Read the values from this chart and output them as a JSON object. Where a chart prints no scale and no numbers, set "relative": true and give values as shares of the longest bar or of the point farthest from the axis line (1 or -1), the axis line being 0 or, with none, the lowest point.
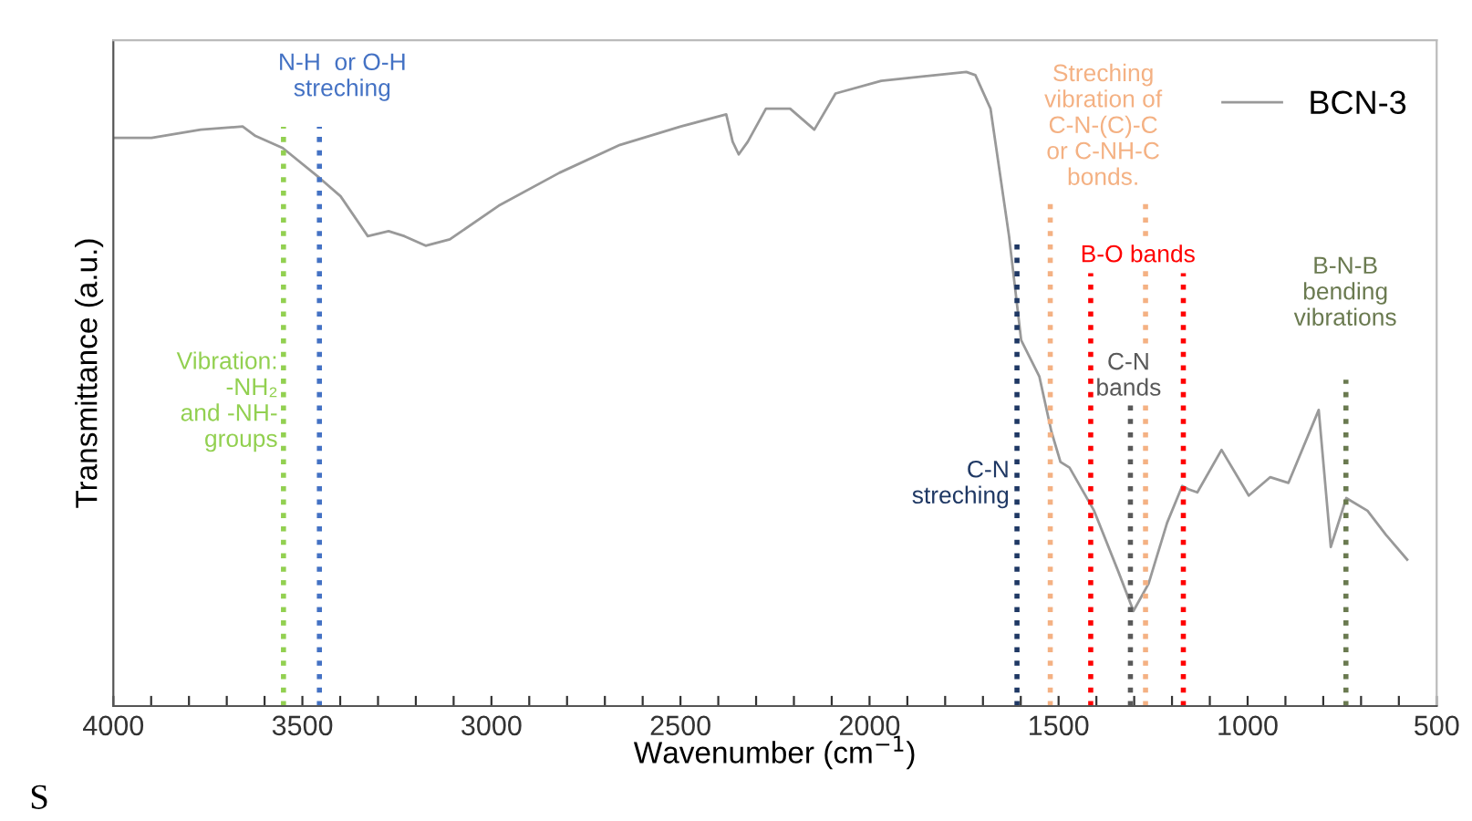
{
  "chart_data": {
    "type": "line",
    "relative": true,
    "xlabel": "Wavenumber (cm$^{−1}$)",
    "ylabel": "Transmittance (a.u.)",
    "xlim": [
      4000,
      500
    ],
    "xticks": [
      4000,
      {
        "value": 3900,
        "label": null
      },
      {
        "value": 3800,
        "label": null
      },
      {
        "value": 3700,
        "label": null
      },
      {
        "value": 3600,
        "label": null
      },
      3500,
      {
        "value": 3400,
        "label": null
      },
      {
        "value": 3300,
        "label": null
      },
      {
        "value": 3200,
        "label": null
      },
      {
        "value": 3100,
        "label": null
      },
      3000,
      {
        "value": 2900,
        "label": null
      },
      {
        "value": 2800,
        "label": null
      },
      {
        "value": 2700,
        "label": null
      },
      {
        "value": 2600,
        "label": null
      },
      2500,
      {
        "value": 2400,
        "label": null
      },
      {
        "value": 2300,
        "label": null
      },
      {
        "value": 2200,
        "label": null
      },
      {
        "value": 2100,
        "label": null
      },
      2000,
      {
        "value": 1900,
        "label": null
      },
      {
        "value": 1800,
        "label": null
      },
      {
        "value": 1700,
        "label": null
      },
      {
        "value": 1600,
        "label": null
      },
      1500,
      {
        "value": 1400,
        "label": null
      },
      {
        "value": 1300,
        "label": null
      },
      {
        "value": 1200,
        "label": null
      },
      {
        "value": 1100,
        "label": null
      },
      1000,
      {
        "value": 900,
        "label": null
      },
      {
        "value": 800,
        "label": null
      },
      {
        "value": 700,
        "label": null
      },
      {
        "value": 600,
        "label": null
      },
      500
    ],
    "tick_labels": "x",
    "grid": false,
    "legend": "top right",
    "marker": "none",
    "line_style": "solid",
    "series": [
      {
        "name": "BCN-3",
        "color": "#999999",
        "x": [
          4000,
          3899,
          3769,
          3658,
          3624,
          3552,
          3455,
          3399,
          3327,
          3272,
          3230,
          3174,
          3110,
          2981,
          2820,
          2660,
          2499,
          2379,
          2362,
          2346,
          2322,
          2274,
          2210,
          2146,
          2090,
          1969,
          1744,
          1720,
          1680,
          1631,
          1599,
          1551,
          1519,
          1495,
          1471,
          1406,
          1342,
          1302,
          1262,
          1213,
          1173,
          1157,
          1133,
          1069,
          997,
          940,
          892,
          812,
          780,
          739,
          683,
          634,
          578
        ],
        "values": [
          0.896,
          0.896,
          0.909,
          0.914,
          0.899,
          0.88,
          0.833,
          0.804,
          0.741,
          0.749,
          0.741,
          0.726,
          0.736,
          0.789,
          0.841,
          0.885,
          0.914,
          0.933,
          0.89,
          0.87,
          0.89,
          0.942,
          0.942,
          0.909,
          0.966,
          0.986,
          1.0,
          0.995,
          0.942,
          0.741,
          0.577,
          0.52,
          0.433,
          0.385,
          0.376,
          0.308,
          0.212,
          0.15,
          0.193,
          0.289,
          0.347,
          0.342,
          0.337,
          0.404,
          0.332,
          0.361,
          0.352,
          0.467,
          0.251,
          0.328,
          0.308,
          0.27,
          0.231
        ]
      }
    ],
    "ref_lines": [
      {
        "axis": "x",
        "value": 3550,
        "color": "#92d050",
        "line_style": "dotted"
      },
      {
        "axis": "x",
        "value": 3455,
        "color": "#4472c4",
        "line_style": "dotted"
      },
      {
        "axis": "x",
        "value": 1610,
        "color": "#1f3864",
        "line_style": "dotted"
      },
      {
        "axis": "x",
        "value": 1522,
        "color": "#f4b183",
        "line_style": "dotted"
      },
      {
        "axis": "x",
        "value": 1415,
        "color": "#ff0000",
        "line_style": "dotted"
      },
      {
        "axis": "x",
        "value": 1310,
        "color": "#595959",
        "line_style": "dotted"
      },
      {
        "axis": "x",
        "value": 1270,
        "color": "#f4b183",
        "line_style": "dotted"
      },
      {
        "axis": "x",
        "value": 1170,
        "color": "#ff0000",
        "line_style": "dotted"
      },
      {
        "axis": "x",
        "value": 740,
        "color": "#6a7a50",
        "line_style": "dotted"
      }
    ],
    "annotations": [
      "N-H  or O-H\nstreching",
      {
        "text": "Vibration:\n-NH₂\nand -NH-\ngroups",
        "x": 3565,
        "y": 0.48
      },
      {
        "text": "C-N\nstreching",
        "x": 1630,
        "y": 0.35
      },
      "Streching\nvibration of\nC-N-(C)-C\nor C-NH-C\nbonds.",
      {
        "text": "B-O bands",
        "x": 1290,
        "y": 0.71
      },
      {
        "text": "C-N\nbands",
        "x": 1315,
        "y": 0.52
      },
      "B-N-B\nbending\nvibrations",
      "S"
    ]
  }
}
